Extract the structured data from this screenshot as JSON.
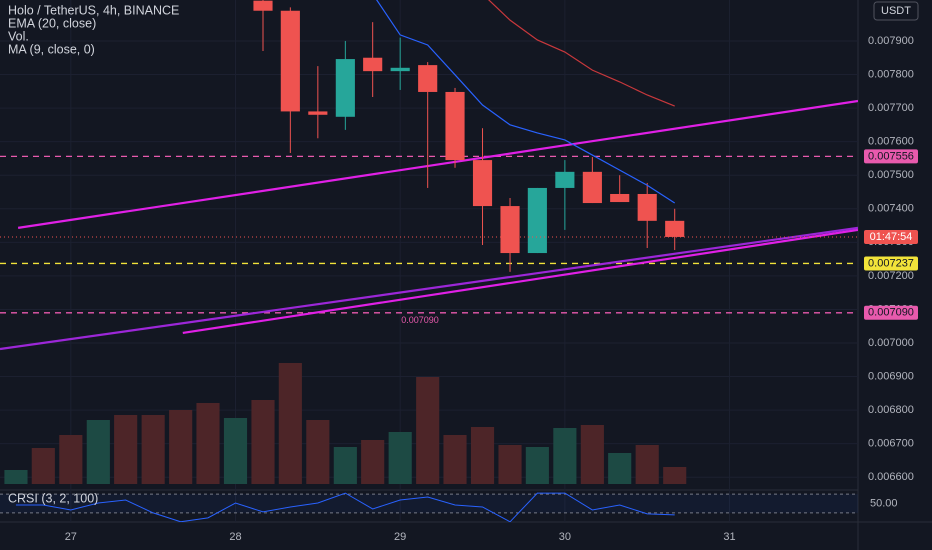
{
  "chart_data": {
    "type": "candlestick",
    "title": "Holo / TetherUS, 4h, BINANCE",
    "currency": "USDT",
    "x": [
      26.667,
      26.833,
      27,
      27.167,
      27.333,
      27.5,
      27.667,
      27.833,
      28,
      28.167,
      28.333,
      28.5,
      28.667,
      28.833,
      29,
      29.167,
      29.333,
      29.5,
      29.667,
      29.833,
      30,
      30.167,
      30.333,
      30.5,
      30.667
    ],
    "xlim": [
      26.57,
      31.78
    ],
    "xticks": [
      27,
      28,
      29,
      30,
      31
    ],
    "ylim": [
      0.006562,
      0.008022
    ],
    "yticks": [
      {
        "value": 0.0079,
        "label": "0.007900"
      },
      {
        "value": 0.0078,
        "label": "0.007800"
      },
      {
        "value": 0.0077,
        "label": "0.007700"
      },
      {
        "value": 0.0076,
        "label": "0.007600"
      },
      {
        "value": 0.0075,
        "label": "0.007500"
      },
      {
        "value": 0.0074,
        "label": "0.007400"
      },
      {
        "value": 0.0073,
        "label": "0.007300"
      },
      {
        "value": 0.0072,
        "label": "0.007200"
      },
      {
        "value": 0.0071,
        "label": "0.007100"
      },
      {
        "value": 0.007,
        "label": "0.007000"
      },
      {
        "value": 0.0069,
        "label": "0.006900"
      },
      {
        "value": 0.0068,
        "label": "0.006800"
      },
      {
        "value": 0.0067,
        "label": "0.006700"
      },
      {
        "value": 0.0066,
        "label": "0.006600"
      }
    ],
    "grid": true,
    "candles": {
      "up_color": "#26a69a",
      "down_color": "#ef5350",
      "open": [
        null,
        null,
        null,
        null,
        null,
        null,
        null,
        null,
        null,
        0.00802,
        0.00799,
        0.00769,
        0.007674,
        0.00785,
        0.00781,
        0.007828,
        0.007748,
        0.007545,
        0.007408,
        0.007268,
        0.007462,
        0.00751,
        0.007444,
        0.007444,
        0.007364
      ],
      "high": [
        null,
        null,
        null,
        null,
        null,
        null,
        null,
        null,
        null,
        0.0081,
        0.008,
        0.007825,
        0.0079,
        0.007956,
        0.00791,
        0.007837,
        0.00776,
        0.00764,
        0.007432,
        0.007462,
        0.007545,
        0.007554,
        0.0075,
        0.007477,
        0.0074
      ],
      "low": [
        null,
        null,
        null,
        null,
        null,
        null,
        null,
        null,
        null,
        0.00787,
        0.007566,
        0.00761,
        0.007635,
        0.007733,
        0.007754,
        0.007462,
        0.007522,
        0.007292,
        0.007212,
        0.007268,
        0.007337,
        0.007417,
        0.00742,
        0.007283,
        0.007277
      ],
      "close": [
        null,
        null,
        null,
        null,
        null,
        null,
        null,
        null,
        null,
        0.00799,
        0.00769,
        0.00768,
        0.007846,
        0.00781,
        0.00782,
        0.007748,
        0.007545,
        0.007408,
        0.007268,
        0.007462,
        0.00751,
        0.007417,
        0.00742,
        0.007364,
        0.007316
      ]
    },
    "series": [
      {
        "name": "EMA (20, close)",
        "kind": "line",
        "color": "#2962ff",
        "values": [
          null,
          null,
          null,
          null,
          null,
          null,
          null,
          null,
          null,
          null,
          null,
          null,
          null,
          0.00804,
          0.007918,
          0.007888,
          0.007799,
          0.007709,
          0.00765,
          0.007626,
          0.007605,
          0.00756,
          0.007515,
          0.00747,
          0.007417
        ]
      },
      {
        "name": "Vol.",
        "kind": "volume",
        "values": [
          14,
          36,
          49,
          64,
          69,
          69,
          74,
          81,
          66,
          84,
          121,
          64,
          37,
          44,
          52,
          107,
          49,
          57,
          39,
          37,
          56,
          59,
          31,
          39,
          17
        ],
        "colors": [
          "#1d4a44",
          "#4d2528",
          "#4d2528",
          "#1d4a44",
          "#4d2528",
          "#4d2528",
          "#4d2528",
          "#4d2528",
          "#1d4a44",
          "#4d2528",
          "#4d2528",
          "#4d2528",
          "#1d4a44",
          "#4d2528",
          "#1d4a44",
          "#4d2528",
          "#4d2528",
          "#4d2528",
          "#4d2528",
          "#1d4a44",
          "#1d4a44",
          "#4d2528",
          "#1d4a44",
          "#4d2528",
          "#4d2528"
        ]
      },
      {
        "name": "MA (9, close, 0)",
        "kind": "line",
        "color": "#c8383c",
        "values": [
          null,
          null,
          null,
          null,
          null,
          null,
          null,
          null,
          null,
          null,
          null,
          null,
          null,
          null,
          null,
          null,
          null,
          0.00804,
          0.007962,
          0.007903,
          0.007867,
          0.007813,
          0.007778,
          0.007739,
          0.007706
        ]
      }
    ],
    "trendlines": [
      {
        "color": "#e020e6",
        "x": [
          26.68,
          31.78
        ],
        "y": [
          0.007343,
          0.007721
        ]
      },
      {
        "color": "#e020e6",
        "x": [
          27.68,
          31.78
        ],
        "y": [
          0.00703,
          0.007337
        ]
      },
      {
        "color": "#9c27d8",
        "x": [
          26.57,
          31.78
        ],
        "y": [
          0.006982,
          0.007343
        ]
      }
    ],
    "levels": [
      {
        "value": 0.007556,
        "label": "0.007556",
        "color": "#e85aad"
      },
      {
        "value": 0.007237,
        "label": "0.007237",
        "color": "#f2e33a"
      },
      {
        "value": 0.00709,
        "label": "0.007090",
        "color": "#e85aad"
      }
    ],
    "price_line": {
      "value": 0.007316,
      "label": "01:47:54",
      "color": "#ef5350"
    },
    "crsi": {
      "name": "CRSI (3, 2, 100)",
      "color": "#2962ff",
      "ylim": [
        0,
        100
      ],
      "bands": [
        30,
        70
      ],
      "yticks": [
        {
          "value": 50,
          "label": "50.00"
        }
      ],
      "values": [
        46.8,
        46.8,
        36.3,
        51,
        57.4,
        30,
        11.1,
        19.5,
        51,
        32.1,
        42.6,
        51,
        72.1,
        38.4,
        57.4,
        63.7,
        46.8,
        42.6,
        11.1,
        72.1,
        72.1,
        36.3,
        46.8,
        27.9,
        25.8
      ]
    }
  }
}
